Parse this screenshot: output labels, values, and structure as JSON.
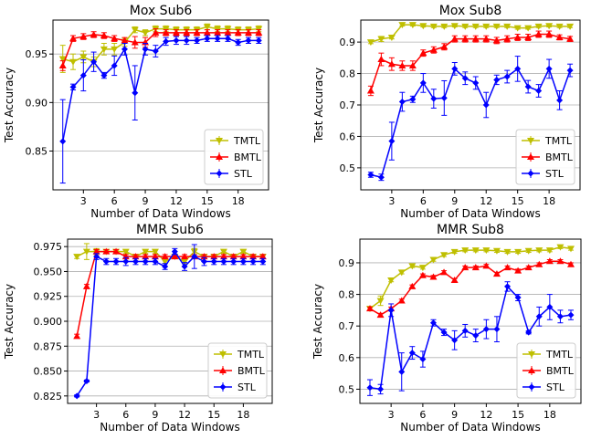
{
  "legend_labels": [
    "TMTL",
    "BMTL",
    "STL"
  ],
  "colors": {
    "TMTL": "#bfbf00",
    "BMTL": "#ff0000",
    "STL": "#0000ff",
    "grid": "#b0b0b0"
  },
  "chart_data": [
    {
      "type": "line",
      "title": "Mox Sub6",
      "xlabel": "Number of Data Windows",
      "ylabel": "Test Accuracy",
      "xlim": [
        0.05,
        20.95
      ],
      "ylim": [
        0.81,
        0.985
      ],
      "xticks": [
        3,
        6,
        9,
        12,
        15,
        18
      ],
      "yticks": [
        0.85,
        0.9,
        0.95
      ],
      "ytick_labels": [
        "0.85",
        "0.90",
        "0.95"
      ],
      "grid": "horizontal",
      "legend_position": "lower-right",
      "x": [
        1,
        2,
        3,
        4,
        5,
        6,
        7,
        8,
        9,
        10,
        11,
        12,
        13,
        14,
        15,
        16,
        17,
        18,
        19,
        20
      ],
      "series": [
        {
          "name": "TMTL",
          "values": [
            0.945,
            0.942,
            0.947,
            0.942,
            0.955,
            0.955,
            0.962,
            0.975,
            0.972,
            0.976,
            0.976,
            0.975,
            0.975,
            0.975,
            0.978,
            0.976,
            0.976,
            0.975,
            0.975,
            0.976
          ],
          "errors": [
            0.014,
            0.008,
            0.006,
            0.005,
            0.006,
            0.006,
            0.004,
            0.003,
            0.003,
            0.003,
            0.003,
            0.003,
            0.003,
            0.003,
            0.003,
            0.003,
            0.003,
            0.003,
            0.003,
            0.003
          ]
        },
        {
          "name": "BMTL",
          "values": [
            0.938,
            0.966,
            0.968,
            0.97,
            0.969,
            0.966,
            0.964,
            0.962,
            0.962,
            0.972,
            0.972,
            0.972,
            0.972,
            0.972,
            0.972,
            0.972,
            0.972,
            0.972,
            0.972,
            0.972
          ],
          "errors": [
            0.005,
            0.003,
            0.003,
            0.003,
            0.003,
            0.003,
            0.003,
            0.006,
            0.005,
            0.004,
            0.003,
            0.003,
            0.003,
            0.003,
            0.003,
            0.003,
            0.003,
            0.003,
            0.003,
            0.003
          ]
        },
        {
          "name": "STL",
          "values": [
            0.86,
            0.916,
            0.928,
            0.942,
            0.928,
            0.938,
            0.955,
            0.91,
            0.955,
            0.953,
            0.963,
            0.964,
            0.964,
            0.964,
            0.966,
            0.966,
            0.966,
            0.962,
            0.964,
            0.964
          ],
          "errors": [
            0.043,
            0.003,
            0.016,
            0.01,
            0.003,
            0.01,
            0.006,
            0.028,
            0.006,
            0.006,
            0.004,
            0.004,
            0.004,
            0.003,
            0.003,
            0.003,
            0.003,
            0.003,
            0.003,
            0.003
          ]
        }
      ]
    },
    {
      "type": "line",
      "title": "Mox Sub8",
      "xlabel": "Number of Data Windows",
      "ylabel": "Test Accuracy",
      "xlim": [
        0.05,
        20.95
      ],
      "ylim": [
        0.43,
        0.97
      ],
      "xticks": [
        3,
        6,
        9,
        12,
        15,
        18
      ],
      "yticks": [
        0.5,
        0.6,
        0.7,
        0.8,
        0.9
      ],
      "ytick_labels": [
        "0.5",
        "0.6",
        "0.7",
        "0.8",
        "0.9"
      ],
      "grid": "horizontal",
      "legend_position": "lower-right",
      "x": [
        1,
        2,
        3,
        4,
        5,
        6,
        7,
        8,
        9,
        10,
        11,
        12,
        13,
        14,
        15,
        16,
        17,
        18,
        19,
        20
      ],
      "series": [
        {
          "name": "TMTL",
          "values": [
            0.9,
            0.91,
            0.915,
            0.955,
            0.955,
            0.952,
            0.95,
            0.95,
            0.952,
            0.95,
            0.95,
            0.95,
            0.95,
            0.95,
            0.945,
            0.945,
            0.95,
            0.952,
            0.95,
            0.95
          ],
          "errors": [
            0.005,
            0.008,
            0.005,
            0.004,
            0.004,
            0.004,
            0.004,
            0.004,
            0.004,
            0.004,
            0.004,
            0.004,
            0.004,
            0.004,
            0.004,
            0.004,
            0.004,
            0.004,
            0.004,
            0.004
          ]
        },
        {
          "name": "BMTL",
          "values": [
            0.745,
            0.845,
            0.83,
            0.825,
            0.825,
            0.865,
            0.875,
            0.885,
            0.91,
            0.91,
            0.91,
            0.91,
            0.905,
            0.91,
            0.915,
            0.915,
            0.925,
            0.925,
            0.915,
            0.91
          ],
          "errors": [
            0.015,
            0.02,
            0.02,
            0.015,
            0.015,
            0.01,
            0.01,
            0.01,
            0.01,
            0.01,
            0.01,
            0.01,
            0.01,
            0.01,
            0.01,
            0.01,
            0.01,
            0.01,
            0.008,
            0.008
          ]
        },
        {
          "name": "STL",
          "values": [
            0.478,
            0.47,
            0.585,
            0.71,
            0.718,
            0.77,
            0.72,
            0.722,
            0.815,
            0.785,
            0.77,
            0.7,
            0.78,
            0.79,
            0.815,
            0.758,
            0.745,
            0.815,
            0.715,
            0.81
          ],
          "errors": [
            0.008,
            0.01,
            0.06,
            0.03,
            0.01,
            0.03,
            0.03,
            0.055,
            0.02,
            0.02,
            0.02,
            0.04,
            0.015,
            0.02,
            0.04,
            0.02,
            0.02,
            0.03,
            0.03,
            0.02
          ]
        }
      ]
    },
    {
      "type": "line",
      "title": "MMR Sub6",
      "xlabel": "Number of Data Windows",
      "ylabel": "Test Accuracy",
      "xlim": [
        0.05,
        20.95
      ],
      "ylim": [
        0.8175,
        0.9825
      ],
      "xticks": [
        3,
        6,
        9,
        12,
        15,
        18
      ],
      "yticks": [
        0.825,
        0.85,
        0.875,
        0.9,
        0.925,
        0.95,
        0.975
      ],
      "ytick_labels": [
        "0.825",
        "0.850",
        "0.875",
        "0.900",
        "0.925",
        "0.950",
        "0.975"
      ],
      "grid": "horizontal",
      "legend_position": "lower-right",
      "x": [
        1,
        2,
        3,
        4,
        5,
        6,
        7,
        8,
        9,
        10,
        11,
        12,
        13,
        14,
        15,
        16,
        17,
        18,
        19,
        20
      ],
      "series": [
        {
          "name": "TMTL",
          "values": [
            0.965,
            0.97,
            0.97,
            0.97,
            0.97,
            0.97,
            0.965,
            0.97,
            0.97,
            0.96,
            0.965,
            0.96,
            0.97,
            0.965,
            0.965,
            0.97,
            0.965,
            0.97,
            0.965,
            0.965
          ],
          "errors": [
            0.002,
            0.008,
            0.003,
            0.002,
            0.002,
            0.002,
            0.002,
            0.002,
            0.002,
            0.002,
            0.002,
            0.002,
            0.003,
            0.002,
            0.002,
            0.002,
            0.002,
            0.002,
            0.002,
            0.002
          ]
        },
        {
          "name": "BMTL",
          "values": [
            0.885,
            0.935,
            0.97,
            0.97,
            0.97,
            0.965,
            0.965,
            0.965,
            0.965,
            0.965,
            0.965,
            0.965,
            0.965,
            0.965,
            0.965,
            0.965,
            0.965,
            0.965,
            0.965,
            0.965
          ],
          "errors": [
            0.002,
            0.002,
            0.002,
            0.002,
            0.002,
            0.002,
            0.002,
            0.002,
            0.002,
            0.002,
            0.002,
            0.002,
            0.002,
            0.002,
            0.002,
            0.002,
            0.002,
            0.002,
            0.002,
            0.002
          ]
        },
        {
          "name": "STL",
          "values": [
            0.825,
            0.84,
            0.965,
            0.96,
            0.96,
            0.96,
            0.96,
            0.96,
            0.96,
            0.955,
            0.97,
            0.955,
            0.965,
            0.96,
            0.96,
            0.96,
            0.96,
            0.96,
            0.96,
            0.96
          ],
          "errors": [
            0.001,
            0.001,
            0.003,
            0.003,
            0.003,
            0.004,
            0.003,
            0.003,
            0.003,
            0.003,
            0.003,
            0.004,
            0.012,
            0.004,
            0.003,
            0.003,
            0.003,
            0.003,
            0.003,
            0.003
          ]
        }
      ]
    },
    {
      "type": "line",
      "title": "MMR Sub8",
      "xlabel": "Number of Data Windows",
      "ylabel": "Test Accuracy",
      "xlim": [
        0.05,
        20.95
      ],
      "ylim": [
        0.455,
        0.975
      ],
      "xticks": [
        3,
        6,
        9,
        12,
        15,
        18
      ],
      "yticks": [
        0.5,
        0.6,
        0.7,
        0.8,
        0.9
      ],
      "ytick_labels": [
        "0.5",
        "0.6",
        "0.7",
        "0.8",
        "0.9"
      ],
      "grid": "horizontal",
      "legend_position": "lower-right",
      "x": [
        1,
        2,
        3,
        4,
        5,
        6,
        7,
        8,
        9,
        10,
        11,
        12,
        13,
        14,
        15,
        16,
        17,
        18,
        19,
        20
      ],
      "series": [
        {
          "name": "TMTL",
          "values": [
            0.755,
            0.78,
            0.845,
            0.87,
            0.89,
            0.885,
            0.91,
            0.925,
            0.935,
            0.94,
            0.94,
            0.94,
            0.938,
            0.935,
            0.935,
            0.938,
            0.94,
            0.94,
            0.95,
            0.945
          ],
          "errors": [
            0.005,
            0.015,
            0.005,
            0.005,
            0.005,
            0.005,
            0.005,
            0.005,
            0.005,
            0.005,
            0.005,
            0.005,
            0.005,
            0.005,
            0.005,
            0.005,
            0.005,
            0.005,
            0.005,
            0.005
          ]
        },
        {
          "name": "BMTL",
          "values": [
            0.755,
            0.735,
            0.755,
            0.78,
            0.825,
            0.86,
            0.855,
            0.87,
            0.845,
            0.885,
            0.885,
            0.89,
            0.865,
            0.885,
            0.875,
            0.885,
            0.895,
            0.905,
            0.905,
            0.895
          ],
          "errors": [
            0.005,
            0.005,
            0.005,
            0.005,
            0.005,
            0.005,
            0.005,
            0.005,
            0.005,
            0.005,
            0.005,
            0.005,
            0.005,
            0.005,
            0.005,
            0.005,
            0.005,
            0.005,
            0.005,
            0.005
          ]
        },
        {
          "name": "STL",
          "values": [
            0.505,
            0.5,
            0.75,
            0.555,
            0.615,
            0.595,
            0.71,
            0.68,
            0.655,
            0.685,
            0.67,
            0.69,
            0.69,
            0.825,
            0.79,
            0.68,
            0.73,
            0.76,
            0.73,
            0.735
          ],
          "errors": [
            0.025,
            0.015,
            0.02,
            0.06,
            0.02,
            0.025,
            0.01,
            0.01,
            0.03,
            0.02,
            0.02,
            0.03,
            0.04,
            0.015,
            0.01,
            0.005,
            0.03,
            0.04,
            0.02,
            0.015
          ]
        }
      ]
    }
  ]
}
